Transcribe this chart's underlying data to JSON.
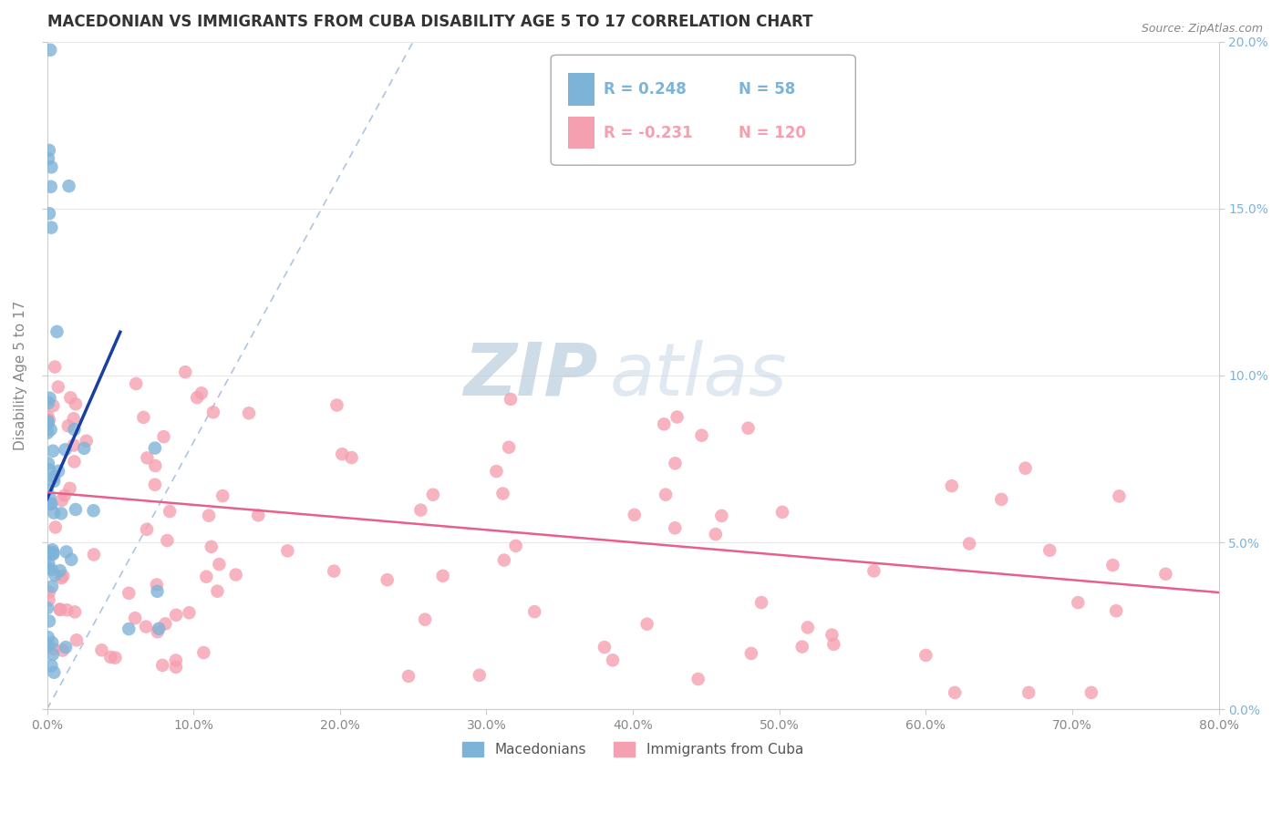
{
  "title": "MACEDONIAN VS IMMIGRANTS FROM CUBA DISABILITY AGE 5 TO 17 CORRELATION CHART",
  "source_text": "Source: ZipAtlas.com",
  "ylabel": "Disability Age 5 to 17",
  "xmin": 0.0,
  "xmax": 0.8,
  "ymin": 0.0,
  "ymax": 0.2,
  "yticks": [
    0.0,
    0.05,
    0.1,
    0.15,
    0.2
  ],
  "ytick_labels": [
    "0.0%",
    "5.0%",
    "10.0%",
    "15.0%",
    "20.0%"
  ],
  "xticks": [
    0.0,
    0.1,
    0.2,
    0.3,
    0.4,
    0.5,
    0.6,
    0.7,
    0.8
  ],
  "xtick_labels": [
    "0.0%",
    "10.0%",
    "20.0%",
    "30.0%",
    "40.0%",
    "50.0%",
    "60.0%",
    "70.0%",
    "80.0%"
  ],
  "blue_color": "#7EB3D8",
  "pink_color": "#F5A0B0",
  "blue_line_color": "#1A3FA3",
  "pink_line_color": "#E8608A",
  "diag_color": "#B0C4DE",
  "legend_r_blue_text": "R = 0.248",
  "legend_n_blue_text": "N = 58",
  "legend_r_pink_text": "R = -0.231",
  "legend_n_pink_text": "N = 120",
  "watermark_zip": "ZIP",
  "watermark_atlas": "atlas",
  "legend_label_blue": "Macedonians",
  "legend_label_pink": "Immigrants from Cuba",
  "title_fontsize": 12,
  "axis_label_fontsize": 11,
  "tick_fontsize": 10,
  "background_color": "#FFFFFF",
  "grid_color": "#E8E8E8",
  "blue_seed": 42,
  "pink_seed": 7,
  "blue_line_x": [
    0.0,
    0.05
  ],
  "blue_line_y": [
    0.063,
    0.113
  ],
  "pink_line_x": [
    0.0,
    0.8
  ],
  "pink_line_y": [
    0.065,
    0.035
  ],
  "diag_line_x": [
    0.0,
    0.25
  ],
  "diag_line_y": [
    0.0,
    0.2
  ]
}
